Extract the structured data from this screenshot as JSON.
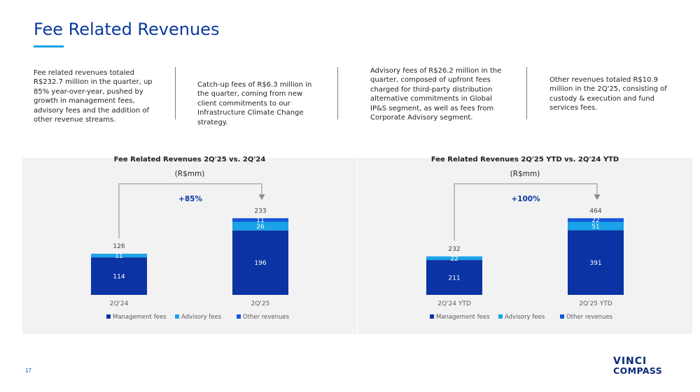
{
  "page": {
    "title": "Fee Related Revenues",
    "page_number": "17",
    "logo_line1": "VINCI",
    "logo_line2": "COMPASS"
  },
  "text_columns": [
    "Fee related revenues totaled R$232.7 million in the quarter, up 85% year-over-year, pushed by growth in management fees, advisory fees and the addition of other revenue streams.",
    "Catch-up fees of R$6.3 million in the quarter, coming from new client commitments to our Infrastructure Climate Change strategy.",
    "Advisory fees of R$26.2 million in the quarter, composed of upfront fees charged for third-party distribution alternative commitments in Global IP&S segment, as well as fees from Corporate Advisory segment.",
    "Other revenues totaled R$10.9 million in the 2Q'25, consisting of custody & execution and fund services fees."
  ],
  "colors": {
    "management": "#0b33a3",
    "advisory": "#1aa3e8",
    "other": "#1556d8",
    "arrow": "#8c8c8c",
    "growth_label": "#0b3a9e"
  },
  "chart_data": [
    {
      "type": "bar",
      "stacked": true,
      "title": "Fee Related Revenues 2Q'25 vs. 2Q'24",
      "unit": "(R$mm)",
      "growth_label": "+85%",
      "categories": [
        "2Q'24",
        "2Q'25"
      ],
      "series": [
        {
          "name": "Management fees",
          "values": [
            114,
            196
          ]
        },
        {
          "name": "Advisory fees",
          "values": [
            11,
            26
          ]
        },
        {
          "name": "Other revenues",
          "values": [
            0,
            11
          ]
        }
      ],
      "segment_labels": [
        [
          "114",
          "11",
          ""
        ],
        [
          "196",
          "26",
          "11"
        ]
      ],
      "totals": [
        "126",
        "233"
      ],
      "legend": [
        "Management fees",
        "Advisory fees",
        "Other revenues"
      ],
      "legend_position": "bottom",
      "grid": false
    },
    {
      "type": "bar",
      "stacked": true,
      "title": "Fee Related Revenues 2Q'25 YTD vs. 2Q'24 YTD",
      "unit": "(R$mm)",
      "growth_label": "+100%",
      "categories": [
        "2Q'24 YTD",
        "2Q'25 YTD"
      ],
      "series": [
        {
          "name": "Management fees",
          "values": [
            211,
            391
          ]
        },
        {
          "name": "Advisory fees",
          "values": [
            22,
            51
          ]
        },
        {
          "name": "Other revenues",
          "values": [
            0,
            22
          ]
        }
      ],
      "segment_labels": [
        [
          "211",
          "22",
          ""
        ],
        [
          "391",
          "51",
          "22"
        ]
      ],
      "totals": [
        "232",
        "464"
      ],
      "legend": [
        "Management fees",
        "Advisory fees",
        "Other revenues"
      ],
      "legend_position": "bottom",
      "grid": false
    }
  ]
}
